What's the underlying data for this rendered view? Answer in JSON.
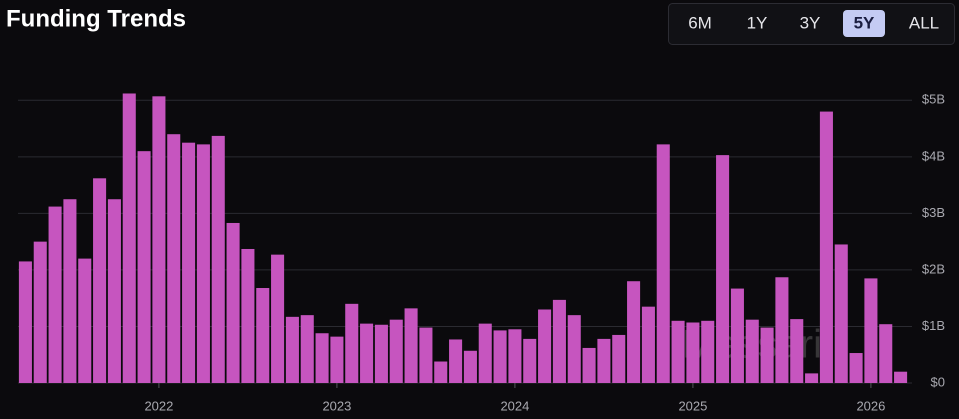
{
  "chart_data": {
    "type": "bar",
    "title": "Funding Trends",
    "range_buttons": [
      "6M",
      "1Y",
      "3Y",
      "5Y",
      "ALL"
    ],
    "selected_range": "5Y",
    "watermark": "Messari",
    "categories": [
      null,
      null,
      null,
      null,
      null,
      null,
      null,
      null,
      null,
      "2022",
      null,
      null,
      null,
      null,
      null,
      null,
      null,
      null,
      null,
      null,
      null,
      "2023",
      null,
      null,
      null,
      null,
      null,
      null,
      null,
      null,
      null,
      null,
      null,
      "2024",
      null,
      null,
      null,
      null,
      null,
      null,
      null,
      null,
      null,
      null,
      null,
      "2025",
      null,
      null,
      null,
      null,
      null,
      null,
      null,
      null,
      null,
      null,
      null,
      "2026",
      null,
      null
    ],
    "values": [
      2.15,
      2.5,
      3.12,
      3.25,
      2.2,
      3.62,
      3.25,
      5.12,
      4.1,
      5.07,
      4.4,
      4.25,
      4.22,
      4.37,
      2.83,
      2.37,
      1.68,
      2.27,
      1.17,
      1.2,
      0.88,
      0.82,
      1.4,
      1.05,
      1.03,
      1.12,
      1.32,
      0.98,
      0.38,
      0.77,
      0.57,
      1.05,
      0.93,
      0.95,
      0.78,
      1.3,
      1.47,
      1.2,
      0.62,
      0.78,
      0.85,
      1.8,
      1.35,
      4.22,
      1.1,
      1.07,
      1.1,
      4.03,
      1.67,
      1.12,
      0.98,
      1.87,
      1.13,
      0.17,
      4.8,
      2.45,
      0.53,
      1.85,
      1.04,
      0.2
    ],
    "color": "#c655bf",
    "ylim": [
      0,
      5.5
    ],
    "yticks": [
      {
        "value": 0,
        "label": "$0"
      },
      {
        "value": 1,
        "label": "$1B"
      },
      {
        "value": 2,
        "label": "$2B"
      },
      {
        "value": 3,
        "label": "$3B"
      },
      {
        "value": 4,
        "label": "$4B"
      },
      {
        "value": 5,
        "label": "$5B"
      }
    ],
    "grid": true
  }
}
